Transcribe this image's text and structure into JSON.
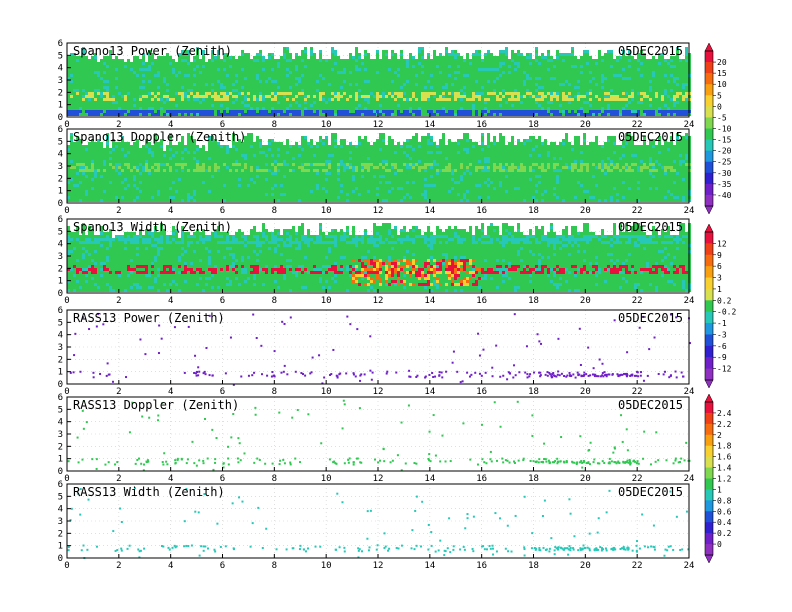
{
  "panels": [
    {
      "title": "Spano13 Power (Zenith)",
      "date": "05DEC2015",
      "field": "power",
      "bar": 0
    },
    {
      "title": "Spano13 Doppler (Zenith)",
      "date": "05DEC2015",
      "field": "doppler",
      "bar": 0
    },
    {
      "title": "Spano13 Width (Zenith)",
      "date": "05DEC2015",
      "field": "width",
      "bar": 1
    },
    {
      "title": "RASS13 Power (Zenith)",
      "date": "05DEC2015",
      "field": "rass_power",
      "bar": 1
    },
    {
      "title": "RASS13 Doppler (Zenith)",
      "date": "05DEC2015",
      "field": "rass_doppler",
      "bar": 2
    },
    {
      "title": "RASS13 Width (Zenith)",
      "date": "05DEC2015",
      "field": "rass_width",
      "bar": 2
    }
  ],
  "chart_data": {
    "type": "heatmap",
    "x_ticks": [
      0,
      2,
      4,
      6,
      8,
      10,
      12,
      14,
      16,
      18,
      20,
      22,
      24
    ],
    "y_ticks": [
      0,
      1,
      2,
      3,
      4,
      5,
      6
    ],
    "xlim": [
      0,
      24
    ],
    "ylim": [
      0,
      6
    ],
    "colorbars": [
      {
        "labels": [
          "20",
          "15",
          "10",
          "5",
          "0",
          "-5",
          "-10",
          "-15",
          "-20",
          "-25",
          "-30",
          "-35",
          "-40"
        ],
        "colors": [
          "#e8103c",
          "#f04018",
          "#f86c10",
          "#f8a010",
          "#f8d030",
          "#d8e050",
          "#80d850",
          "#30c850",
          "#28c8b8",
          "#2098e0",
          "#2050d8",
          "#3020d0",
          "#7020c8",
          "#9030c0"
        ]
      },
      {
        "labels": [
          "12",
          "9",
          "6",
          "3",
          "1",
          "0.2",
          "-0.2",
          "-1",
          "-3",
          "-6",
          "-9",
          "-12"
        ],
        "colors": [
          "#e8103c",
          "#f04018",
          "#f86c10",
          "#f8a010",
          "#f8d030",
          "#d8e050",
          "#30c850",
          "#28c8b8",
          "#2098e0",
          "#2050d8",
          "#3020d0",
          "#7020c8",
          "#9030c0"
        ]
      },
      {
        "labels": [
          "2.4",
          "2.2",
          "2",
          "1.8",
          "1.6",
          "1.4",
          "1.2",
          "1",
          "0.8",
          "0.6",
          "0.4",
          "0.2",
          "0"
        ],
        "colors": [
          "#e8103c",
          "#f04018",
          "#f86c10",
          "#f8a010",
          "#f8d030",
          "#d8e050",
          "#80d850",
          "#30c850",
          "#28c8b8",
          "#2098e0",
          "#2050d8",
          "#3020d0",
          "#7020c8",
          "#9030c0"
        ]
      }
    ],
    "series": [
      {
        "field": "power",
        "dominant_color": "#30c850",
        "bands": [
          {
            "y": 1.8,
            "color": "#d8e050"
          },
          {
            "y": 0.3,
            "color": "#2050d8"
          },
          {
            "y": 5.5,
            "color": "#28c8b8"
          }
        ]
      },
      {
        "field": "doppler",
        "dominant_color": "#30c850",
        "bands": [
          {
            "y": 3.0,
            "color": "#80d850"
          }
        ]
      },
      {
        "field": "width",
        "dominant_color": "#30c850",
        "bands": [
          {
            "y": 4.5,
            "color": "#28c8b8"
          },
          {
            "y": 2.0,
            "color": "#e8103c"
          }
        ]
      },
      {
        "field": "rass_power",
        "dominant_color": "#7020c8",
        "bands": [
          {
            "y": 0.7,
            "color": "#7020c8"
          }
        ]
      },
      {
        "field": "rass_doppler",
        "dominant_color": "#30c850",
        "bands": [
          {
            "y": 0.7,
            "color": "#80d850"
          }
        ]
      },
      {
        "field": "rass_width",
        "dominant_color": "#28c8b8",
        "bands": [
          {
            "y": 0.7,
            "color": "#28c8b8"
          }
        ]
      }
    ]
  }
}
